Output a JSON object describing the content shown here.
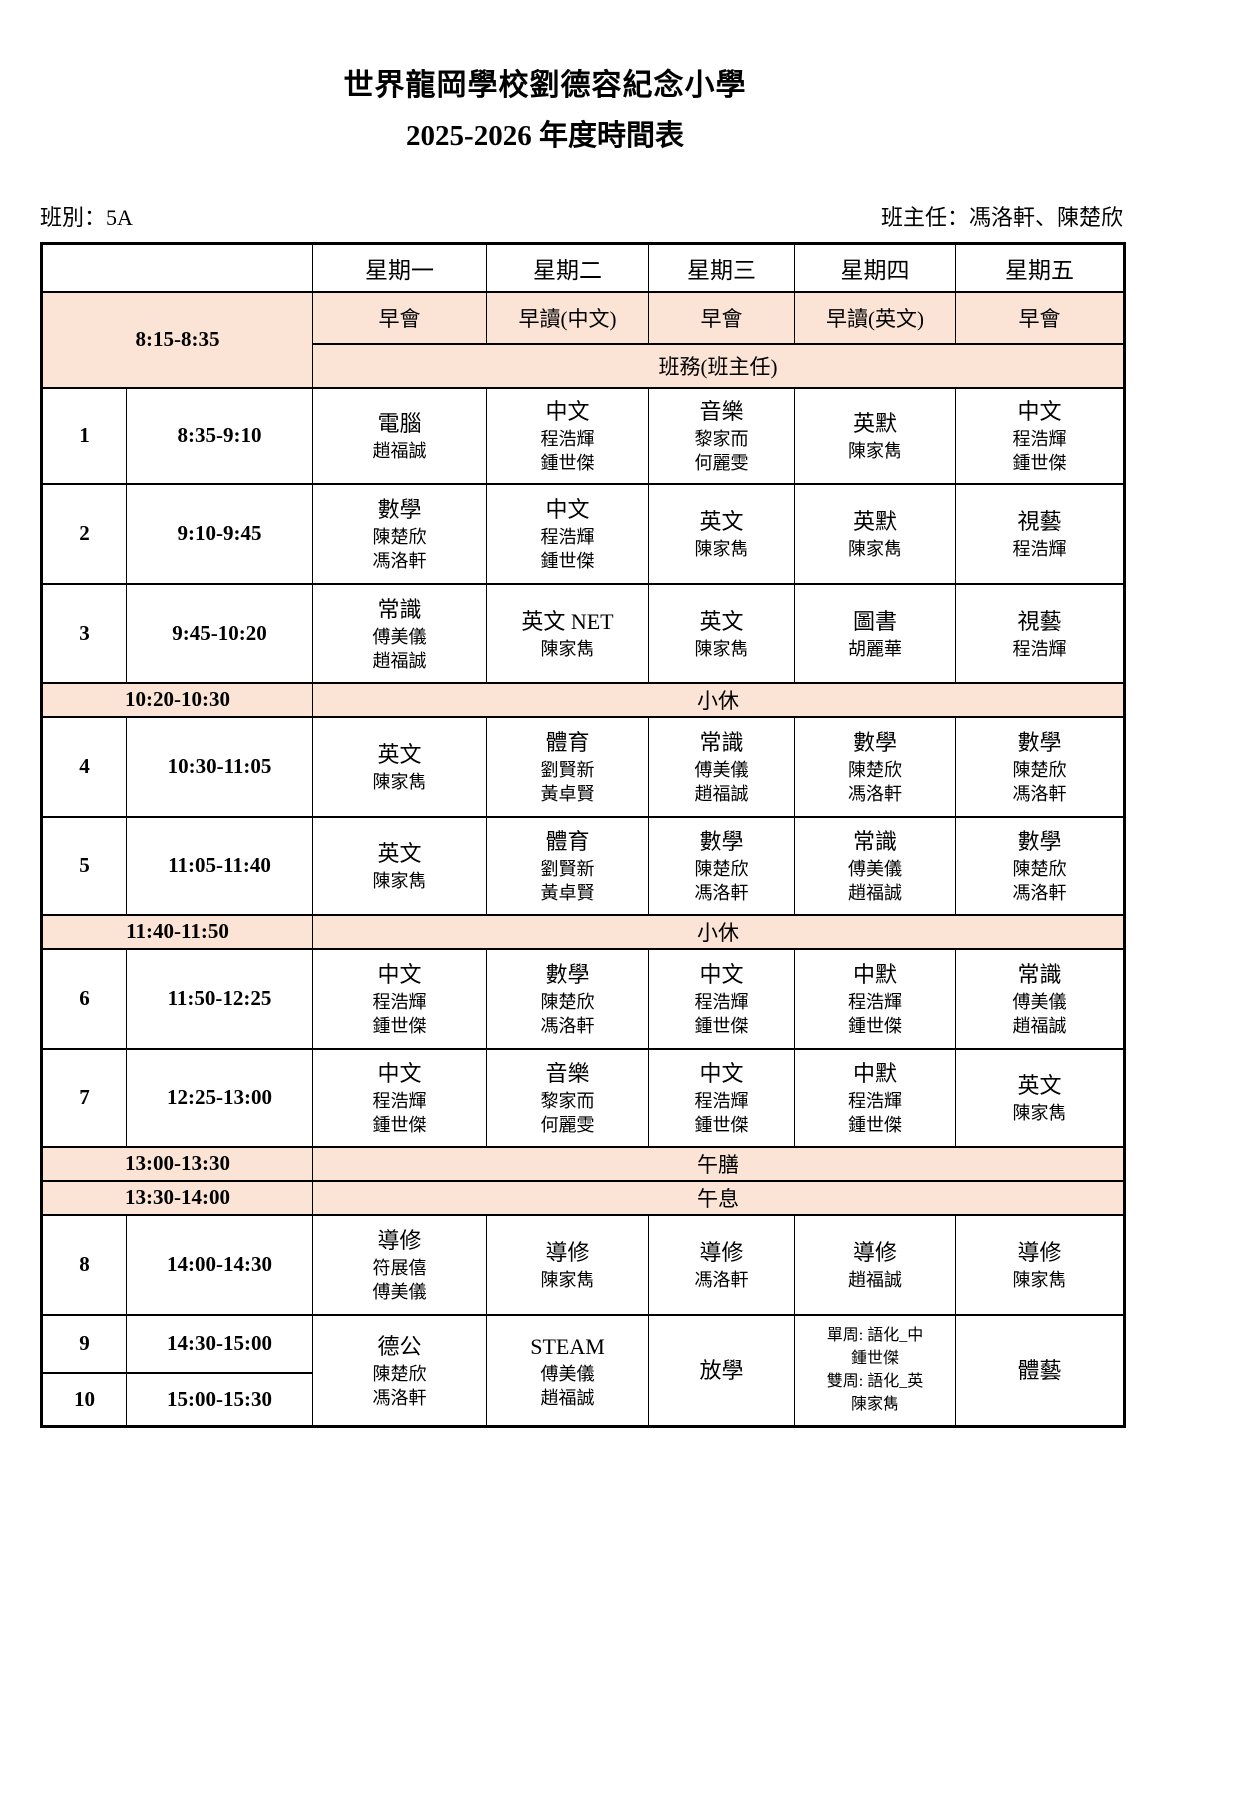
{
  "page": {
    "title_line1": "世界龍岡學校劉德容紀念小學",
    "title_line2": "2025-2026 年度時間表",
    "class_label": "班別：5A",
    "head_teacher_label": "班主任：馮洛軒、陳楚欣"
  },
  "colors": {
    "highlight_band": "#fbe4d5",
    "border": "#000000",
    "page_background": "#ffffff"
  },
  "timetable": {
    "day_headers": [
      "星期一",
      "星期二",
      "星期三",
      "星期四",
      "星期五"
    ],
    "morning": {
      "time": "8:15-8:35",
      "activities": [
        "早會",
        "早讀(中文)",
        "早會",
        "早讀(英文)",
        "早會"
      ],
      "class_affairs": "班務(班主任)"
    },
    "periods": [
      {
        "num": "1",
        "time": "8:35-9:10",
        "days": [
          [
            "電腦",
            "趙福誠"
          ],
          [
            "中文",
            "程浩輝",
            "鍾世傑"
          ],
          [
            "音樂",
            "黎家而",
            "何麗雯"
          ],
          [
            "英默",
            "陳家雋"
          ],
          [
            "中文",
            "程浩輝",
            "鍾世傑"
          ]
        ]
      },
      {
        "num": "2",
        "time": "9:10-9:45",
        "days": [
          [
            "數學",
            "陳楚欣",
            "馮洛軒"
          ],
          [
            "中文",
            "程浩輝",
            "鍾世傑"
          ],
          [
            "英文",
            "陳家雋"
          ],
          [
            "英默",
            "陳家雋"
          ],
          [
            "視藝",
            "程浩輝"
          ]
        ]
      },
      {
        "num": "3",
        "time": "9:45-10:20",
        "days": [
          [
            "常識",
            "傅美儀",
            "趙福誠"
          ],
          [
            "英文 NET",
            "陳家雋"
          ],
          [
            "英文",
            "陳家雋"
          ],
          [
            "圖書",
            "胡麗華"
          ],
          [
            "視藝",
            "程浩輝"
          ]
        ]
      },
      {
        "num": "4",
        "time": "10:30-11:05",
        "days": [
          [
            "英文",
            "陳家雋"
          ],
          [
            "體育",
            "劉賢新",
            "黃卓賢"
          ],
          [
            "常識",
            "傅美儀",
            "趙福誠"
          ],
          [
            "數學",
            "陳楚欣",
            "馮洛軒"
          ],
          [
            "數學",
            "陳楚欣",
            "馮洛軒"
          ]
        ]
      },
      {
        "num": "5",
        "time": "11:05-11:40",
        "days": [
          [
            "英文",
            "陳家雋"
          ],
          [
            "體育",
            "劉賢新",
            "黃卓賢"
          ],
          [
            "數學",
            "陳楚欣",
            "馮洛軒"
          ],
          [
            "常識",
            "傅美儀",
            "趙福誠"
          ],
          [
            "數學",
            "陳楚欣",
            "馮洛軒"
          ]
        ]
      },
      {
        "num": "6",
        "time": "11:50-12:25",
        "days": [
          [
            "中文",
            "程浩輝",
            "鍾世傑"
          ],
          [
            "數學",
            "陳楚欣",
            "馮洛軒"
          ],
          [
            "中文",
            "程浩輝",
            "鍾世傑"
          ],
          [
            "中默",
            "程浩輝",
            "鍾世傑"
          ],
          [
            "常識",
            "傅美儀",
            "趙福誠"
          ]
        ]
      },
      {
        "num": "7",
        "time": "12:25-13:00",
        "days": [
          [
            "中文",
            "程浩輝",
            "鍾世傑"
          ],
          [
            "音樂",
            "黎家而",
            "何麗雯"
          ],
          [
            "中文",
            "程浩輝",
            "鍾世傑"
          ],
          [
            "中默",
            "程浩輝",
            "鍾世傑"
          ],
          [
            "英文",
            "陳家雋"
          ]
        ]
      },
      {
        "num": "8",
        "time": "14:00-14:30",
        "days": [
          [
            "導修",
            "符展僖",
            "傅美儀"
          ],
          [
            "導修",
            "陳家雋"
          ],
          [
            "導修",
            "馮洛軒"
          ],
          [
            "導修",
            "趙福誠"
          ],
          [
            "導修",
            "陳家雋"
          ]
        ]
      }
    ],
    "breaks": [
      {
        "time": "10:20-10:30",
        "label": "小休"
      },
      {
        "time": "11:40-11:50",
        "label": "小休"
      },
      {
        "time": "13:00-13:30",
        "label": "午膳"
      },
      {
        "time": "13:30-14:00",
        "label": "午息"
      }
    ],
    "last_block": {
      "rows": [
        {
          "num": "9",
          "time": "14:30-15:00"
        },
        {
          "num": "10",
          "time": "15:00-15:30"
        }
      ],
      "days": [
        [
          "德公",
          "陳楚欣",
          "馮洛軒"
        ],
        [
          "STEAM",
          "傅美儀",
          "趙福誠"
        ],
        [
          "放學"
        ],
        [
          "單周: 語化_中",
          "鍾世傑",
          "雙周: 語化_英",
          "陳家雋"
        ],
        [
          "體藝"
        ]
      ]
    }
  }
}
